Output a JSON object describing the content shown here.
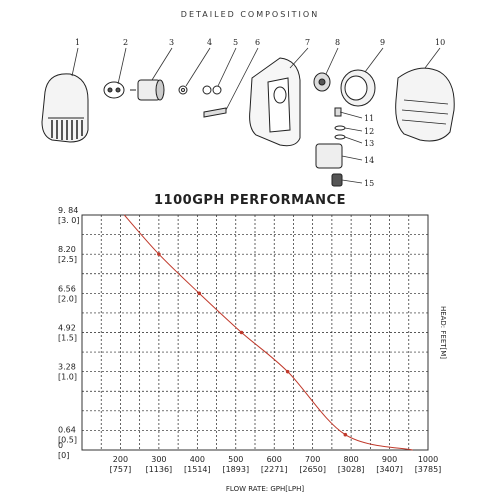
{
  "composition": {
    "title": "DETAILED COMPOSITION",
    "callouts": [
      "1",
      "2",
      "3",
      "4",
      "5",
      "6",
      "7",
      "8",
      "9",
      "10",
      "11",
      "12",
      "13",
      "14",
      "15"
    ]
  },
  "chart_data": {
    "type": "line",
    "title": "1100GPH PERFORMANCE",
    "xlabel": "FLOW RATE: GPH[LPH]",
    "ylabel": "HEAD: FEET[M]",
    "xlim": [
      100,
      1000
    ],
    "ylim": [
      0,
      9.84
    ],
    "x_ticks": [
      {
        "value": 200,
        "label": "200",
        "sub": "[757]"
      },
      {
        "value": 300,
        "label": "300",
        "sub": "[1136]"
      },
      {
        "value": 400,
        "label": "400",
        "sub": "[1514]"
      },
      {
        "value": 500,
        "label": "500",
        "sub": "[1893]"
      },
      {
        "value": 600,
        "label": "600",
        "sub": "[2271]"
      },
      {
        "value": 700,
        "label": "700",
        "sub": "[2650]"
      },
      {
        "value": 800,
        "label": "800",
        "sub": "[3028]"
      },
      {
        "value": 900,
        "label": "900",
        "sub": "[3407]"
      },
      {
        "value": 1000,
        "label": "1000",
        "sub": "[3785]"
      }
    ],
    "y_ticks": [
      {
        "value": 0,
        "label": "0",
        "sub": "[0]"
      },
      {
        "value": 0.64,
        "label": "0.64",
        "sub": "[0.5]"
      },
      {
        "value": 3.28,
        "label": "3.28",
        "sub": "[1.0]"
      },
      {
        "value": 4.92,
        "label": "4.92",
        "sub": "[1.5]"
      },
      {
        "value": 6.56,
        "label": "6.56",
        "sub": "[2.0]"
      },
      {
        "value": 8.2,
        "label": "8.20",
        "sub": "[2.5]"
      },
      {
        "value": 9.84,
        "label": "9. 84",
        "sub": "[3. 0]"
      }
    ],
    "series": [
      {
        "color": "#c0392b",
        "x": [
          210,
          300,
          405,
          515,
          635,
          785,
          960
        ],
        "y": [
          9.84,
          8.2,
          6.56,
          4.92,
          3.28,
          0.64,
          0
        ]
      }
    ],
    "markers": {
      "x": [
        300,
        405,
        515,
        635,
        785
      ],
      "y": [
        8.2,
        6.56,
        4.92,
        3.28,
        0.64
      ]
    },
    "grid": true
  }
}
